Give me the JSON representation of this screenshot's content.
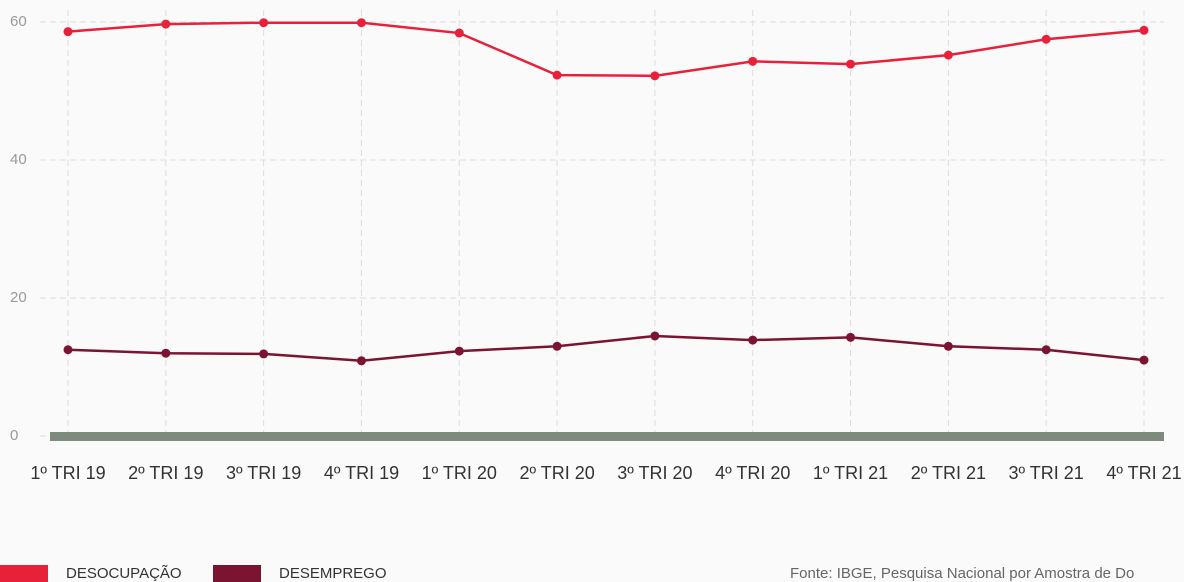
{
  "chart_data": {
    "type": "line",
    "categories": [
      "1º TRI 19",
      "2º TRI 19",
      "3º TRI 19",
      "4º TRI 19",
      "1º TRI 20",
      "2º TRI 20",
      "3º TRI 20",
      "4º TRI 20",
      "1º TRI 21",
      "2º TRI 21",
      "3º TRI 21",
      "4º TRI 21"
    ],
    "series": [
      {
        "name": "DESOCUPAÇÃO",
        "color": "#e8213b",
        "values": [
          58.6,
          59.7,
          59.9,
          59.9,
          58.4,
          52.3,
          52.2,
          54.3,
          53.9,
          55.2,
          57.5,
          58.8
        ]
      },
      {
        "name": "DESEMPREGO",
        "color": "#7b1430",
        "values": [
          12.5,
          12.0,
          11.9,
          10.9,
          12.3,
          13.0,
          14.5,
          13.9,
          14.3,
          13.0,
          12.5,
          11.0
        ]
      }
    ],
    "ylim": [
      0,
      60
    ],
    "yticks": [
      0,
      20,
      40,
      60
    ],
    "grid": true,
    "source": "Fonte: IBGE, Pesquisa Nacional por Amostra de Do"
  }
}
